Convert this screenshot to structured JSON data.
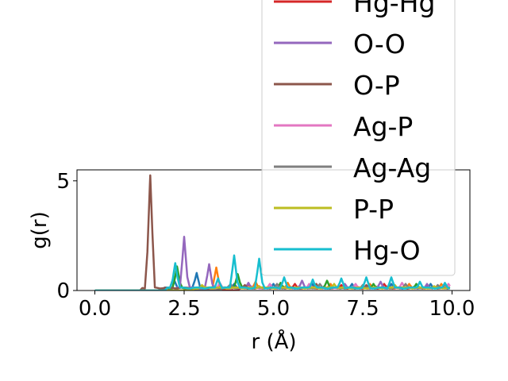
{
  "chart_data": {
    "type": "line",
    "title": "",
    "xlabel": "r (Å)",
    "ylabel": "g(r)",
    "xlim": [
      -0.5,
      10.5
    ],
    "ylim": [
      0,
      5.5
    ],
    "xticks": [
      0.0,
      2.5,
      5.0,
      7.5,
      10.0
    ],
    "xtick_labels": [
      "0.0",
      "2.5",
      "5.0",
      "7.5",
      "10.0"
    ],
    "yticks": [
      0,
      5
    ],
    "ytick_labels": [
      "0",
      "5"
    ],
    "grid": false,
    "legend_position": "upper-right, partially clipped above the frame",
    "series": [
      {
        "color": "#1f77b4",
        "peaks": [
          [
            2.2,
            0.6
          ],
          [
            2.85,
            0.8
          ],
          [
            3.9,
            0.3
          ],
          [
            5.0,
            0.3
          ],
          [
            6.1,
            0.3
          ],
          [
            7.2,
            0.3
          ],
          [
            8.3,
            0.3
          ],
          [
            9.4,
            0.3
          ]
        ]
      },
      {
        "color": "#ff7f0e",
        "peaks": [
          [
            3.4,
            1.05
          ],
          [
            4.5,
            0.4
          ],
          [
            5.4,
            0.35
          ],
          [
            6.6,
            0.3
          ],
          [
            7.7,
            0.3
          ],
          [
            8.8,
            0.3
          ],
          [
            9.7,
            0.3
          ]
        ]
      },
      {
        "color": "#2ca02c",
        "peaks": [
          [
            2.3,
            1.1
          ],
          [
            4.0,
            0.75
          ],
          [
            5.2,
            0.35
          ],
          [
            6.5,
            0.45
          ],
          [
            7.8,
            0.3
          ],
          [
            9.0,
            0.3
          ]
        ]
      },
      {
        "name": "Hg-Hg",
        "color": "#d62728",
        "peaks": [
          [
            4.3,
            0.3
          ],
          [
            5.6,
            0.3
          ],
          [
            6.9,
            0.25
          ],
          [
            8.1,
            0.3
          ],
          [
            9.3,
            0.25
          ]
        ]
      },
      {
        "name": "O-O",
        "color": "#9467bd",
        "peaks": [
          [
            2.5,
            2.45
          ],
          [
            3.2,
            1.2
          ],
          [
            4.3,
            0.35
          ],
          [
            5.8,
            0.45
          ],
          [
            7.0,
            0.3
          ],
          [
            8.0,
            0.4
          ],
          [
            9.3,
            0.3
          ]
        ]
      },
      {
        "name": "O-P",
        "color": "#8c564b",
        "peaks": [
          [
            1.55,
            5.25
          ],
          [
            4.2,
            0.25
          ],
          [
            6.2,
            0.3
          ],
          [
            7.6,
            0.25
          ],
          [
            9.8,
            0.3
          ]
        ]
      },
      {
        "name": "Ag-P",
        "color": "#e377c2",
        "peaks": [
          [
            3.5,
            0.35
          ],
          [
            4.9,
            0.3
          ],
          [
            6.0,
            0.3
          ],
          [
            7.3,
            0.3
          ],
          [
            8.6,
            0.35
          ],
          [
            9.9,
            0.3
          ]
        ]
      },
      {
        "name": "Ag-Ag",
        "color": "#7f7f7f",
        "peaks": [
          [
            3.8,
            0.3
          ],
          [
            5.1,
            0.3
          ],
          [
            6.3,
            0.3
          ],
          [
            7.5,
            0.25
          ],
          [
            8.7,
            0.3
          ],
          [
            9.6,
            0.25
          ]
        ]
      },
      {
        "name": "P-P",
        "color": "#bcbd22",
        "peaks": [
          [
            3.0,
            0.25
          ],
          [
            4.6,
            0.2
          ],
          [
            6.7,
            0.3
          ],
          [
            8.4,
            0.25
          ],
          [
            9.5,
            0.2
          ]
        ]
      },
      {
        "name": "Hg-O",
        "color": "#17becf",
        "peaks": [
          [
            2.25,
            1.25
          ],
          [
            3.45,
            0.55
          ],
          [
            3.9,
            1.6
          ],
          [
            4.6,
            1.45
          ],
          [
            5.3,
            0.6
          ],
          [
            6.1,
            0.5
          ],
          [
            6.9,
            0.55
          ],
          [
            7.6,
            0.6
          ],
          [
            8.3,
            0.6
          ],
          [
            9.1,
            0.4
          ],
          [
            9.8,
            0.35
          ]
        ]
      }
    ]
  }
}
